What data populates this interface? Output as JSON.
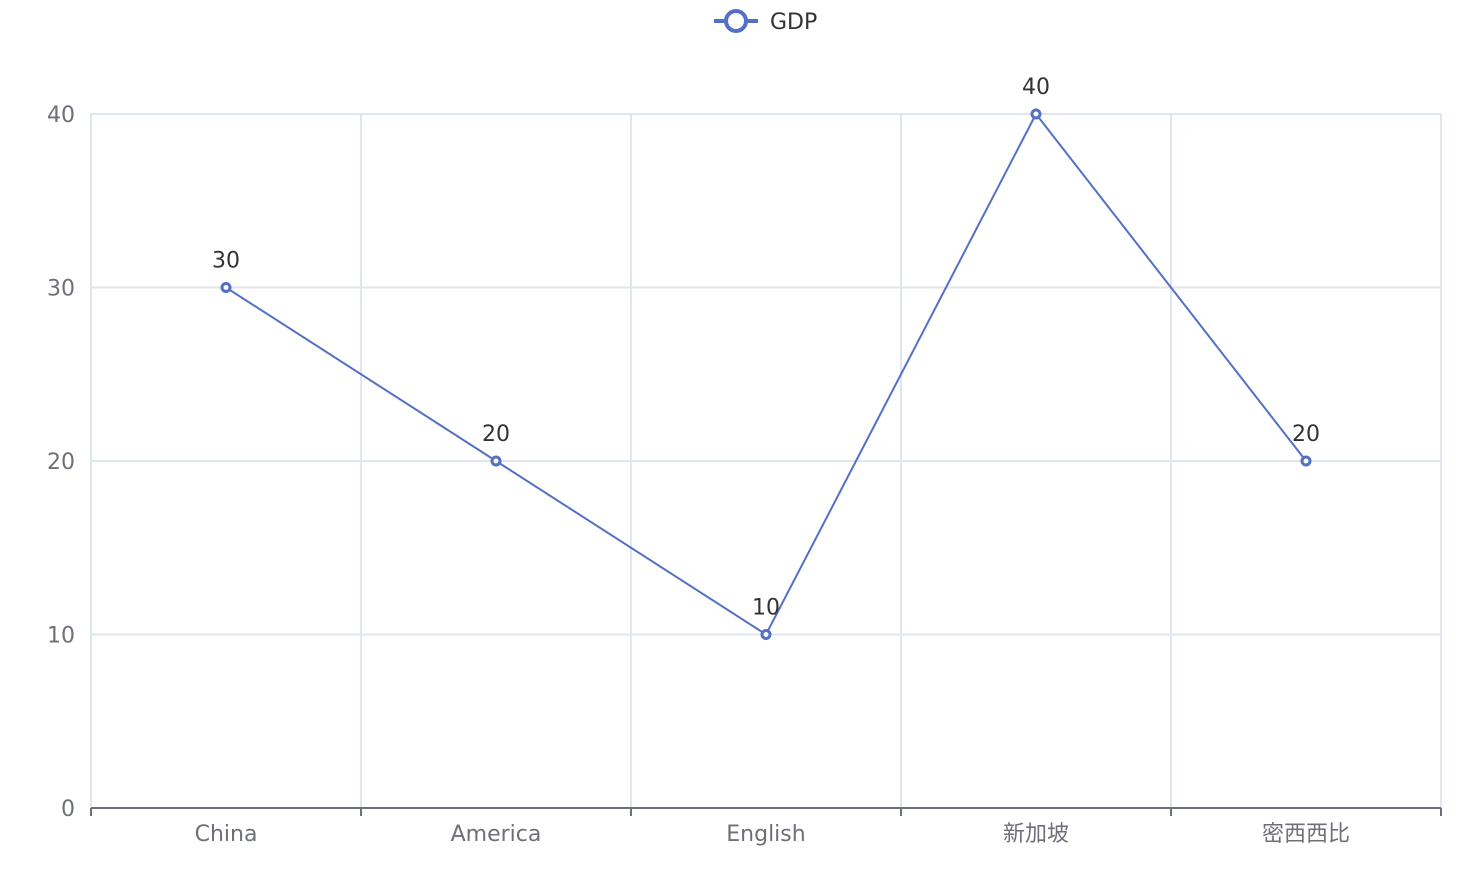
{
  "chart_data": {
    "type": "line",
    "categories": [
      "China",
      "America",
      "English",
      "新加坡",
      "密西西比"
    ],
    "series": [
      {
        "name": "GDP",
        "values": [
          30,
          20,
          10,
          40,
          20
        ]
      }
    ],
    "ylim": [
      0,
      40
    ],
    "yticks": [
      "0",
      "10",
      "20",
      "30",
      "40"
    ],
    "data_labels": [
      "30",
      "20",
      "10",
      "40",
      "20"
    ],
    "grid": true,
    "legend": "top-center",
    "colors": {
      "series": "#5470c6",
      "grid": "#e0e6f1",
      "axis": "#6e7079"
    }
  }
}
